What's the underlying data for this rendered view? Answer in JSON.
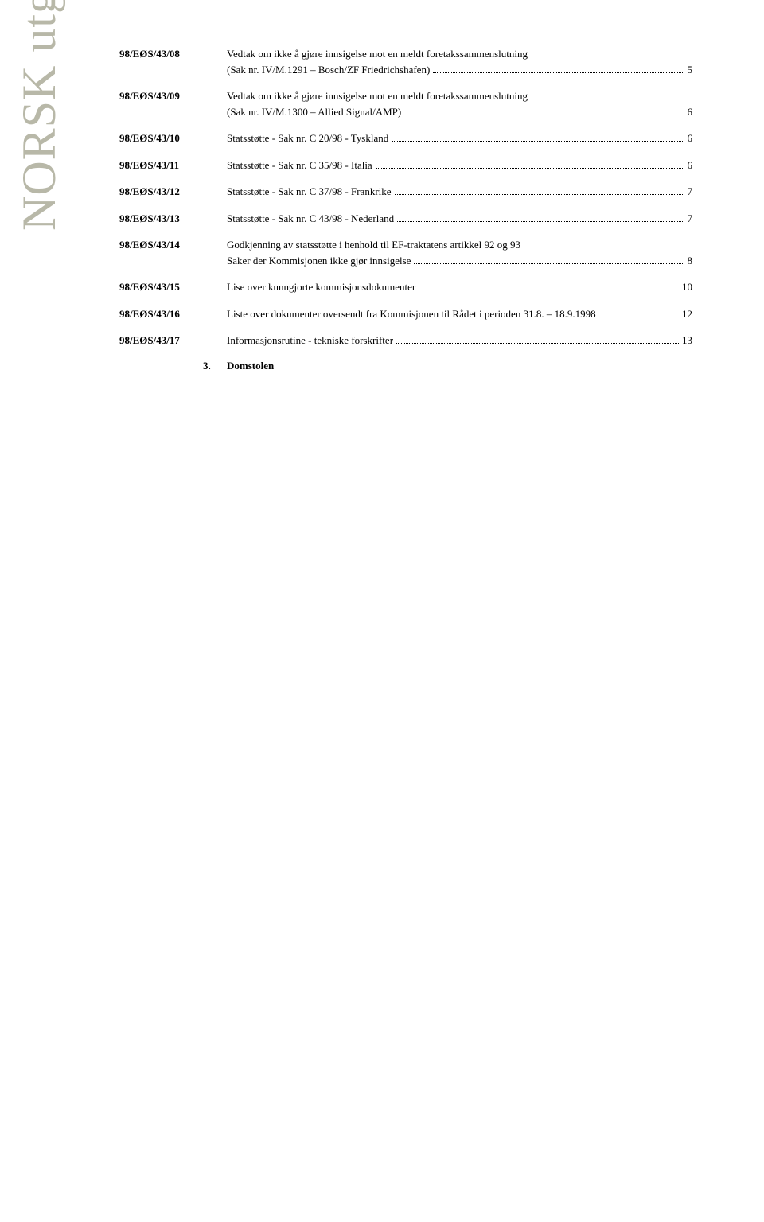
{
  "vertical_title": "NORSK utgave",
  "entries": [
    {
      "label": "98/EØS/43/08",
      "lines": [
        {
          "text": "Vedtak om ikke å gjøre innsigelse mot en meldt foretakssammenslutning",
          "page": null
        },
        {
          "text": "(Sak nr. IV/M.1291 – Bosch/ZF Friedrichshafen)",
          "page": "5"
        }
      ]
    },
    {
      "label": "98/EØS/43/09",
      "lines": [
        {
          "text": "Vedtak om ikke å gjøre innsigelse mot en meldt foretakssammenslutning",
          "page": null
        },
        {
          "text": "(Sak nr. IV/M.1300 – Allied Signal/AMP)",
          "page": "6"
        }
      ]
    },
    {
      "label": "98/EØS/43/10",
      "lines": [
        {
          "text": "Statsstøtte - Sak nr. C 20/98 - Tyskland",
          "page": "6"
        }
      ]
    },
    {
      "label": "98/EØS/43/11",
      "lines": [
        {
          "text": "Statsstøtte - Sak nr. C 35/98 - Italia",
          "page": "6"
        }
      ]
    },
    {
      "label": "98/EØS/43/12",
      "lines": [
        {
          "text": "Statsstøtte - Sak nr. C 37/98 - Frankrike",
          "page": "7"
        }
      ]
    },
    {
      "label": "98/EØS/43/13",
      "lines": [
        {
          "text": "Statsstøtte - Sak nr. C 43/98 - Nederland",
          "page": "7"
        }
      ]
    },
    {
      "label": "98/EØS/43/14",
      "lines": [
        {
          "text": "Godkjenning av statsstøtte i henhold til EF-traktatens artikkel 92 og 93",
          "page": null
        },
        {
          "text": "Saker der Kommisjonen ikke gjør innsigelse",
          "page": "8"
        }
      ]
    },
    {
      "label": "98/EØS/43/15",
      "lines": [
        {
          "text": "Lise over kunngjorte kommisjonsdokumenter",
          "page": "10"
        }
      ]
    },
    {
      "label": "98/EØS/43/16",
      "lines": [
        {
          "text": "Liste over dokumenter oversendt fra Kommisjonen til Rådet i perioden 31.8. – 18.9.1998",
          "page": "12"
        }
      ]
    },
    {
      "label": "98/EØS/43/17",
      "lines": [
        {
          "text": "Informasjonsrutine - tekniske forskrifter",
          "page": "13"
        }
      ]
    }
  ],
  "section": {
    "number": "3.",
    "title": "Domstolen"
  }
}
